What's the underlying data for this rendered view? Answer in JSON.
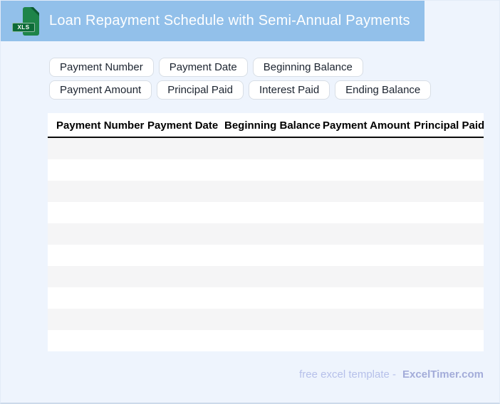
{
  "banner": {
    "title": "Loan Repayment Schedule with Semi-Annual Payments",
    "file_badge": "XLS"
  },
  "chips": [
    {
      "label": "Payment Number"
    },
    {
      "label": "Payment Date"
    },
    {
      "label": "Beginning Balance"
    },
    {
      "label": "Payment Amount"
    },
    {
      "label": "Principal Paid"
    },
    {
      "label": "Interest Paid"
    },
    {
      "label": "Ending Balance"
    }
  ],
  "table": {
    "columns": [
      "Payment Number",
      "Payment Date",
      "Beginning Balance",
      "Payment Amount",
      "Principal Paid"
    ],
    "visible_empty_rows": 10
  },
  "footer": {
    "caption": "free excel template -",
    "brand": "ExcelTimer.com"
  },
  "colors": {
    "banner_bg": "#92c0ea",
    "page_bg": "#eef4fd",
    "icon_green": "#1e8449",
    "icon_green_dark": "#0d6b38",
    "row_stripe": "#f5f5f6",
    "header_rule": "#0a0a0a",
    "footer_text": "#b6c0ea",
    "footer_brand": "#a3acd9"
  }
}
